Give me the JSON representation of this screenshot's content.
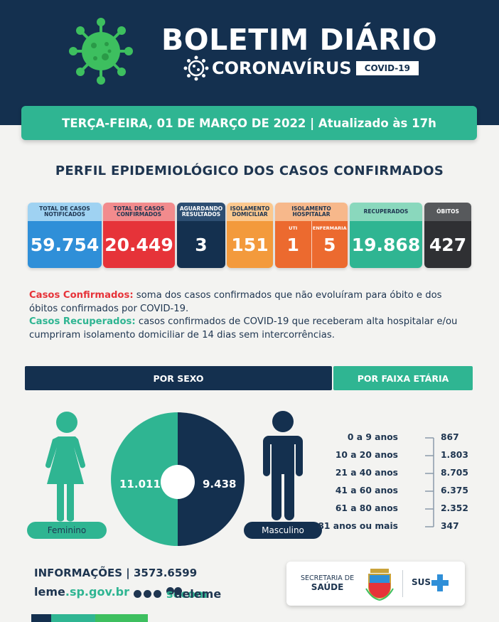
{
  "header": {
    "title": "BOLETIM DIÁRIO",
    "subtitle": "CORONAVÍRUS",
    "badge": "COVID-19"
  },
  "date_bar": "TERÇA-FEIRA, 01 DE MARÇO DE 2022 | Atualizado às 17h",
  "section_title": "PERFIL EPIDEMIOLÓGICO DOS CASOS CONFIRMADOS",
  "cards": {
    "notificados": {
      "label": "TOTAL DE CASOS NOTIFICADOS",
      "value": "59.754"
    },
    "confirmados": {
      "label": "TOTAL DE CASOS CONFIRMADOS",
      "value": "20.449"
    },
    "aguardando": {
      "label": "AGUARDANDO RESULTADOS",
      "value": "3"
    },
    "isolamento_domiciliar": {
      "label": "ISOLAMENTO DOMICILIAR",
      "value": "151"
    },
    "isolamento_hospitalar": {
      "label": "ISOLAMENTO HOSPITALAR",
      "uti_label": "UTI",
      "uti_value": "1",
      "enfermaria_label": "ENFERMARIA",
      "enfermaria_value": "5"
    },
    "recuperados": {
      "label": "RECUPERADOS",
      "value": "19.868"
    },
    "obitos": {
      "label": "ÓBITOS",
      "value": "427"
    }
  },
  "notes": {
    "confirmados_term": "Casos Confirmados:",
    "confirmados_text": " soma dos casos confirmados que não evoluíram para óbito e dos óbitos confirmados por COVID-19.",
    "recuperados_term": "Casos Recuperados:",
    "recuperados_text": " casos confirmados de COVID-19 que receberam alta hospitalar e/ou cumpriram isolamento domiciliar de 14 dias sem intercorrências."
  },
  "por_sexo": {
    "title": "POR SEXO",
    "feminino_label": "Feminino",
    "feminino_value": "11.011",
    "masculino_label": "Masculino",
    "masculino_value": "9.438"
  },
  "por_faixa": {
    "title": "POR FAIXA ETÁRIA",
    "rows": [
      {
        "age": "0 a 9 anos",
        "value": "867"
      },
      {
        "age": "10 a 20 anos",
        "value": "1.803"
      },
      {
        "age": "21 a 40 anos",
        "value": "8.705"
      },
      {
        "age": "41 a 60 anos",
        "value": "6.375"
      },
      {
        "age": "61 a 80 anos",
        "value": "2.352"
      },
      {
        "age": "81 anos ou mais",
        "value": "347"
      }
    ]
  },
  "footer": {
    "info": "INFORMAÇÕES | 3573.6599",
    "site_prefix": "leme",
    "site_suffix": ".sp.gov.br",
    "handle_prefix": "secom",
    "handle_suffix": "deleme",
    "secretaria_line1": "SECRETARIA DE",
    "secretaria_line2": "SAÚDE",
    "sus": "SUS"
  },
  "colors": {
    "navy": "#14304f",
    "green": "#2fb592",
    "blue": "#2f8fd8",
    "red": "#e63339",
    "orange": "#f39a3c",
    "dark_orange": "#ec6a2f",
    "dark": "#2f3033"
  }
}
